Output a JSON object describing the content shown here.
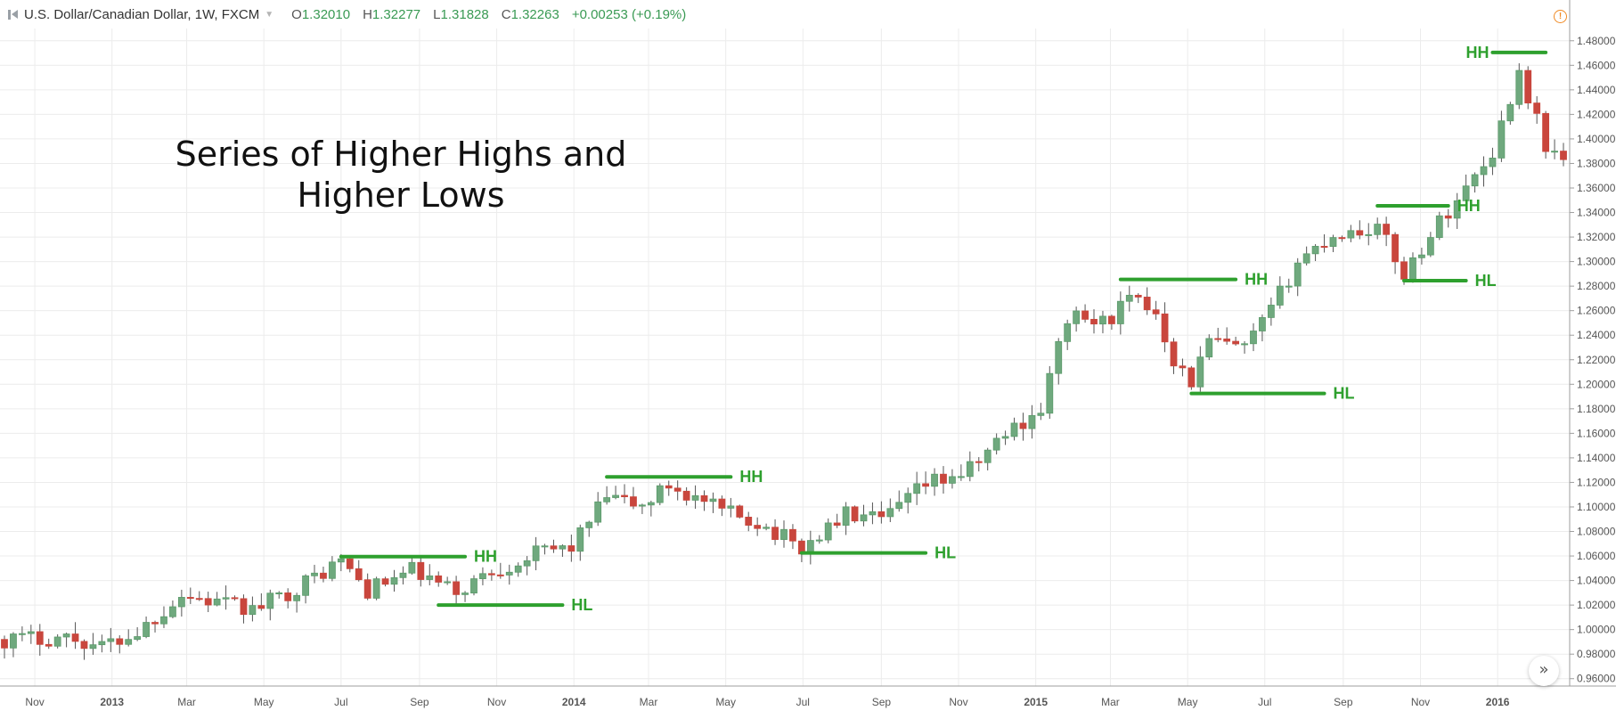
{
  "header": {
    "symbol_title": "U.S. Dollar/Canadian Dollar, 1W, FXCM",
    "open_label": "O",
    "open": "1.32010",
    "high_label": "H",
    "high": "1.32277",
    "low_label": "L",
    "low": "1.31828",
    "close_label": "C",
    "close": "1.32263",
    "change": "+0.00253 (+0.19%)"
  },
  "title_lines": [
    "Series of Higher Highs and",
    "Higher Lows"
  ],
  "colors": {
    "up_candle": "#5b9a6a",
    "up_candle_fill": "#6fa97e",
    "down_candle": "#c9463d",
    "annotation": "#2ea02e",
    "grid": "#ececec",
    "warning": "#f08a24"
  },
  "icons": {
    "symbol": "symbol-flag-icon",
    "dropdown": "chevron-down-icon",
    "warning": "warning-icon",
    "scroll": "double-chevron-right-icon"
  },
  "chart_data": {
    "type": "candlestick",
    "interval": "1W",
    "x_axis": {
      "tick_labels": [
        "Nov",
        "2013",
        "Mar",
        "May",
        "Jul",
        "Sep",
        "Nov",
        "2014",
        "Mar",
        "May",
        "Jul",
        "Sep",
        "Nov",
        "2015",
        "Mar",
        "May",
        "Jul",
        "Sep",
        "Nov",
        "2016"
      ],
      "tick_dates": [
        "2012-11-01",
        "2013-01-01",
        "2013-03-01",
        "2013-05-01",
        "2013-07-01",
        "2013-09-01",
        "2013-11-01",
        "2014-01-01",
        "2014-03-01",
        "2014-05-01",
        "2014-07-01",
        "2014-09-01",
        "2014-11-01",
        "2015-01-01",
        "2015-03-01",
        "2015-05-01",
        "2015-07-01",
        "2015-09-01",
        "2015-11-01",
        "2016-01-01"
      ],
      "bold_labels": [
        "2013",
        "2014",
        "2015",
        "2016"
      ],
      "range": [
        "2012-10-08",
        "2016-02-22"
      ]
    },
    "y_axis": {
      "range": [
        0.954,
        1.49
      ],
      "tick_labels": [
        "0.96000",
        "0.98000",
        "1.00000",
        "1.02000",
        "1.04000",
        "1.06000",
        "1.08000",
        "1.10000",
        "1.12000",
        "1.14000",
        "1.16000",
        "1.18000",
        "1.20000",
        "1.22000",
        "1.24000",
        "1.26000",
        "1.28000",
        "1.30000",
        "1.32000",
        "1.34000",
        "1.36000",
        "1.38000",
        "1.40000",
        "1.42000",
        "1.44000",
        "1.46000",
        "1.48000"
      ],
      "position": "right",
      "grid": true
    },
    "waypoints": [
      [
        "2012-10-08",
        0.992
      ],
      [
        "2012-11-26",
        0.994
      ],
      [
        "2012-12-24",
        0.986
      ],
      [
        "2013-01-21",
        0.998
      ],
      [
        "2013-02-25",
        1.028
      ],
      [
        "2013-04-22",
        1.016
      ],
      [
        "2013-05-27",
        1.034
      ],
      [
        "2013-06-24",
        1.052
      ],
      [
        "2013-07-01",
        1.056
      ],
      [
        "2013-07-22",
        1.032
      ],
      [
        "2013-08-26",
        1.048
      ],
      [
        "2013-09-30",
        1.03
      ],
      [
        "2013-10-21",
        1.044
      ],
      [
        "2013-12-02",
        1.062
      ],
      [
        "2013-12-30",
        1.068
      ],
      [
        "2014-01-27",
        1.108
      ],
      [
        "2014-02-24",
        1.1
      ],
      [
        "2014-03-17",
        1.118
      ],
      [
        "2014-04-28",
        1.096
      ],
      [
        "2014-05-26",
        1.088
      ],
      [
        "2014-06-30",
        1.066
      ],
      [
        "2014-08-04",
        1.094
      ],
      [
        "2014-09-01",
        1.088
      ],
      [
        "2014-10-06",
        1.118
      ],
      [
        "2014-11-10",
        1.13
      ],
      [
        "2014-12-08",
        1.16
      ],
      [
        "2015-01-05",
        1.18
      ],
      [
        "2015-01-26",
        1.255
      ],
      [
        "2015-02-23",
        1.25
      ],
      [
        "2015-03-16",
        1.268
      ],
      [
        "2015-04-06",
        1.26
      ],
      [
        "2015-04-20",
        1.22
      ],
      [
        "2015-05-04",
        1.202
      ],
      [
        "2015-05-18",
        1.235
      ],
      [
        "2015-06-15",
        1.228
      ],
      [
        "2015-07-06",
        1.26
      ],
      [
        "2015-07-27",
        1.3
      ],
      [
        "2015-08-24",
        1.322
      ],
      [
        "2015-09-28",
        1.328
      ],
      [
        "2015-10-19",
        1.29
      ],
      [
        "2015-11-16",
        1.332
      ],
      [
        "2015-12-07",
        1.36
      ],
      [
        "2015-12-28",
        1.39
      ],
      [
        "2016-01-18",
        1.455
      ],
      [
        "2016-02-08",
        1.395
      ],
      [
        "2016-02-22",
        1.382
      ]
    ],
    "levels": [
      {
        "label": "HH",
        "value": 1.0595,
        "from": "2013-07-01",
        "to": "2013-10-07"
      },
      {
        "label": "HL",
        "value": 1.02,
        "from": "2013-09-16",
        "to": "2013-12-23"
      },
      {
        "label": "HH",
        "value": 1.1245,
        "from": "2014-01-27",
        "to": "2014-05-05"
      },
      {
        "label": "HL",
        "value": 1.0625,
        "from": "2014-06-30",
        "to": "2014-10-06"
      },
      {
        "label": "HH",
        "value": 1.2855,
        "from": "2015-03-09",
        "to": "2015-06-08"
      },
      {
        "label": "HL",
        "value": 1.1925,
        "from": "2015-05-04",
        "to": "2015-08-17"
      },
      {
        "label": "HH",
        "value": 1.3455,
        "from": "2015-09-28",
        "to": "2015-11-23"
      },
      {
        "label": "HL",
        "value": 1.2845,
        "from": "2015-10-19",
        "to": "2015-12-07"
      },
      {
        "label": "HH",
        "value": 1.4705,
        "from": "2015-12-28",
        "to": "2016-02-08"
      }
    ]
  }
}
